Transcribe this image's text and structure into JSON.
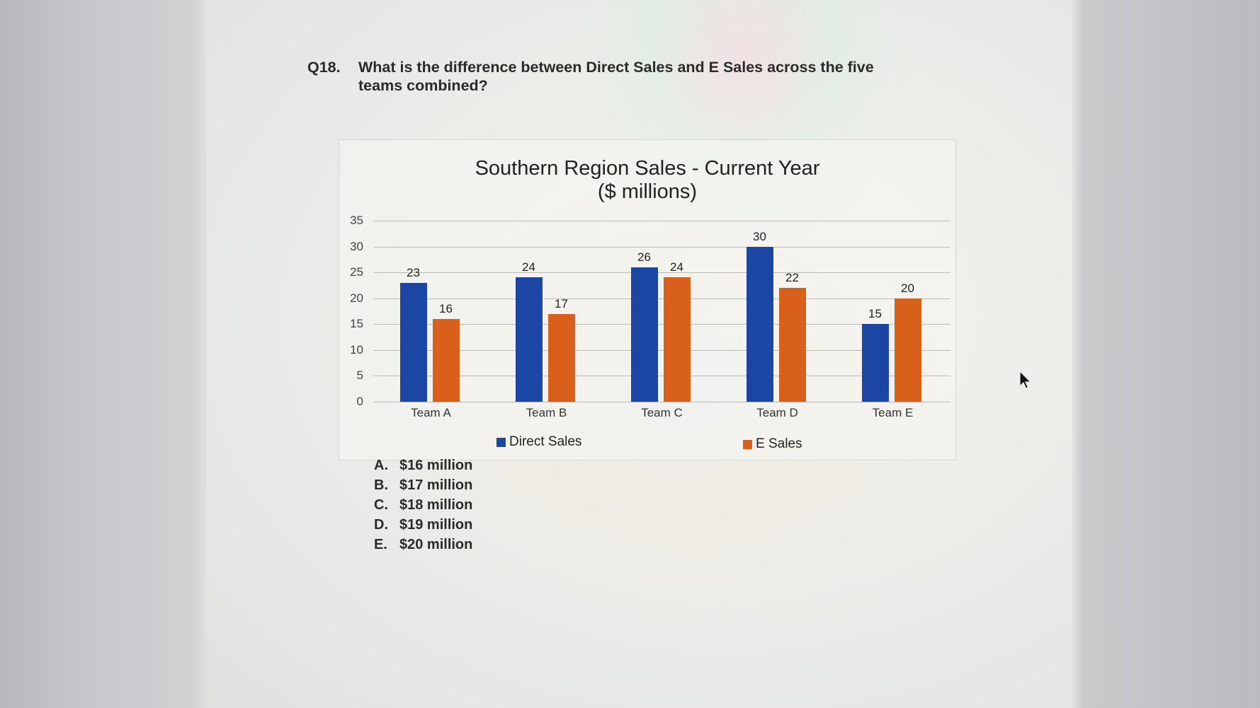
{
  "question": {
    "number": "Q18.",
    "text": "What is the difference between Direct Sales and E Sales across the five teams combined?"
  },
  "answers": [
    {
      "letter": "A.",
      "text": "$16 million"
    },
    {
      "letter": "B.",
      "text": "$17 million"
    },
    {
      "letter": "C.",
      "text": "$18 million"
    },
    {
      "letter": "D.",
      "text": "$19 million"
    },
    {
      "letter": "E.",
      "text": "$20 million"
    }
  ],
  "colors": {
    "direct_sales": "#1b46a4",
    "e_sales": "#d8601a"
  },
  "chart_data": {
    "type": "bar",
    "title": "Southern Region Sales - Current Year",
    "subtitle": "($ millions)",
    "categories": [
      "Team A",
      "Team B",
      "Team C",
      "Team D",
      "Team E"
    ],
    "series": [
      {
        "name": "Direct Sales",
        "values": [
          23,
          24,
          26,
          30,
          15
        ],
        "color": "#1b46a4"
      },
      {
        "name": "E Sales",
        "values": [
          16,
          17,
          24,
          22,
          20
        ],
        "color": "#d8601a"
      }
    ],
    "xlabel": "",
    "ylabel": "",
    "ylim": [
      0,
      35
    ],
    "yticks": [
      "0",
      "5",
      "10",
      "15",
      "20",
      "25",
      "30",
      "35"
    ],
    "grid": true,
    "data_labels": true,
    "legend_position": "bottom"
  }
}
